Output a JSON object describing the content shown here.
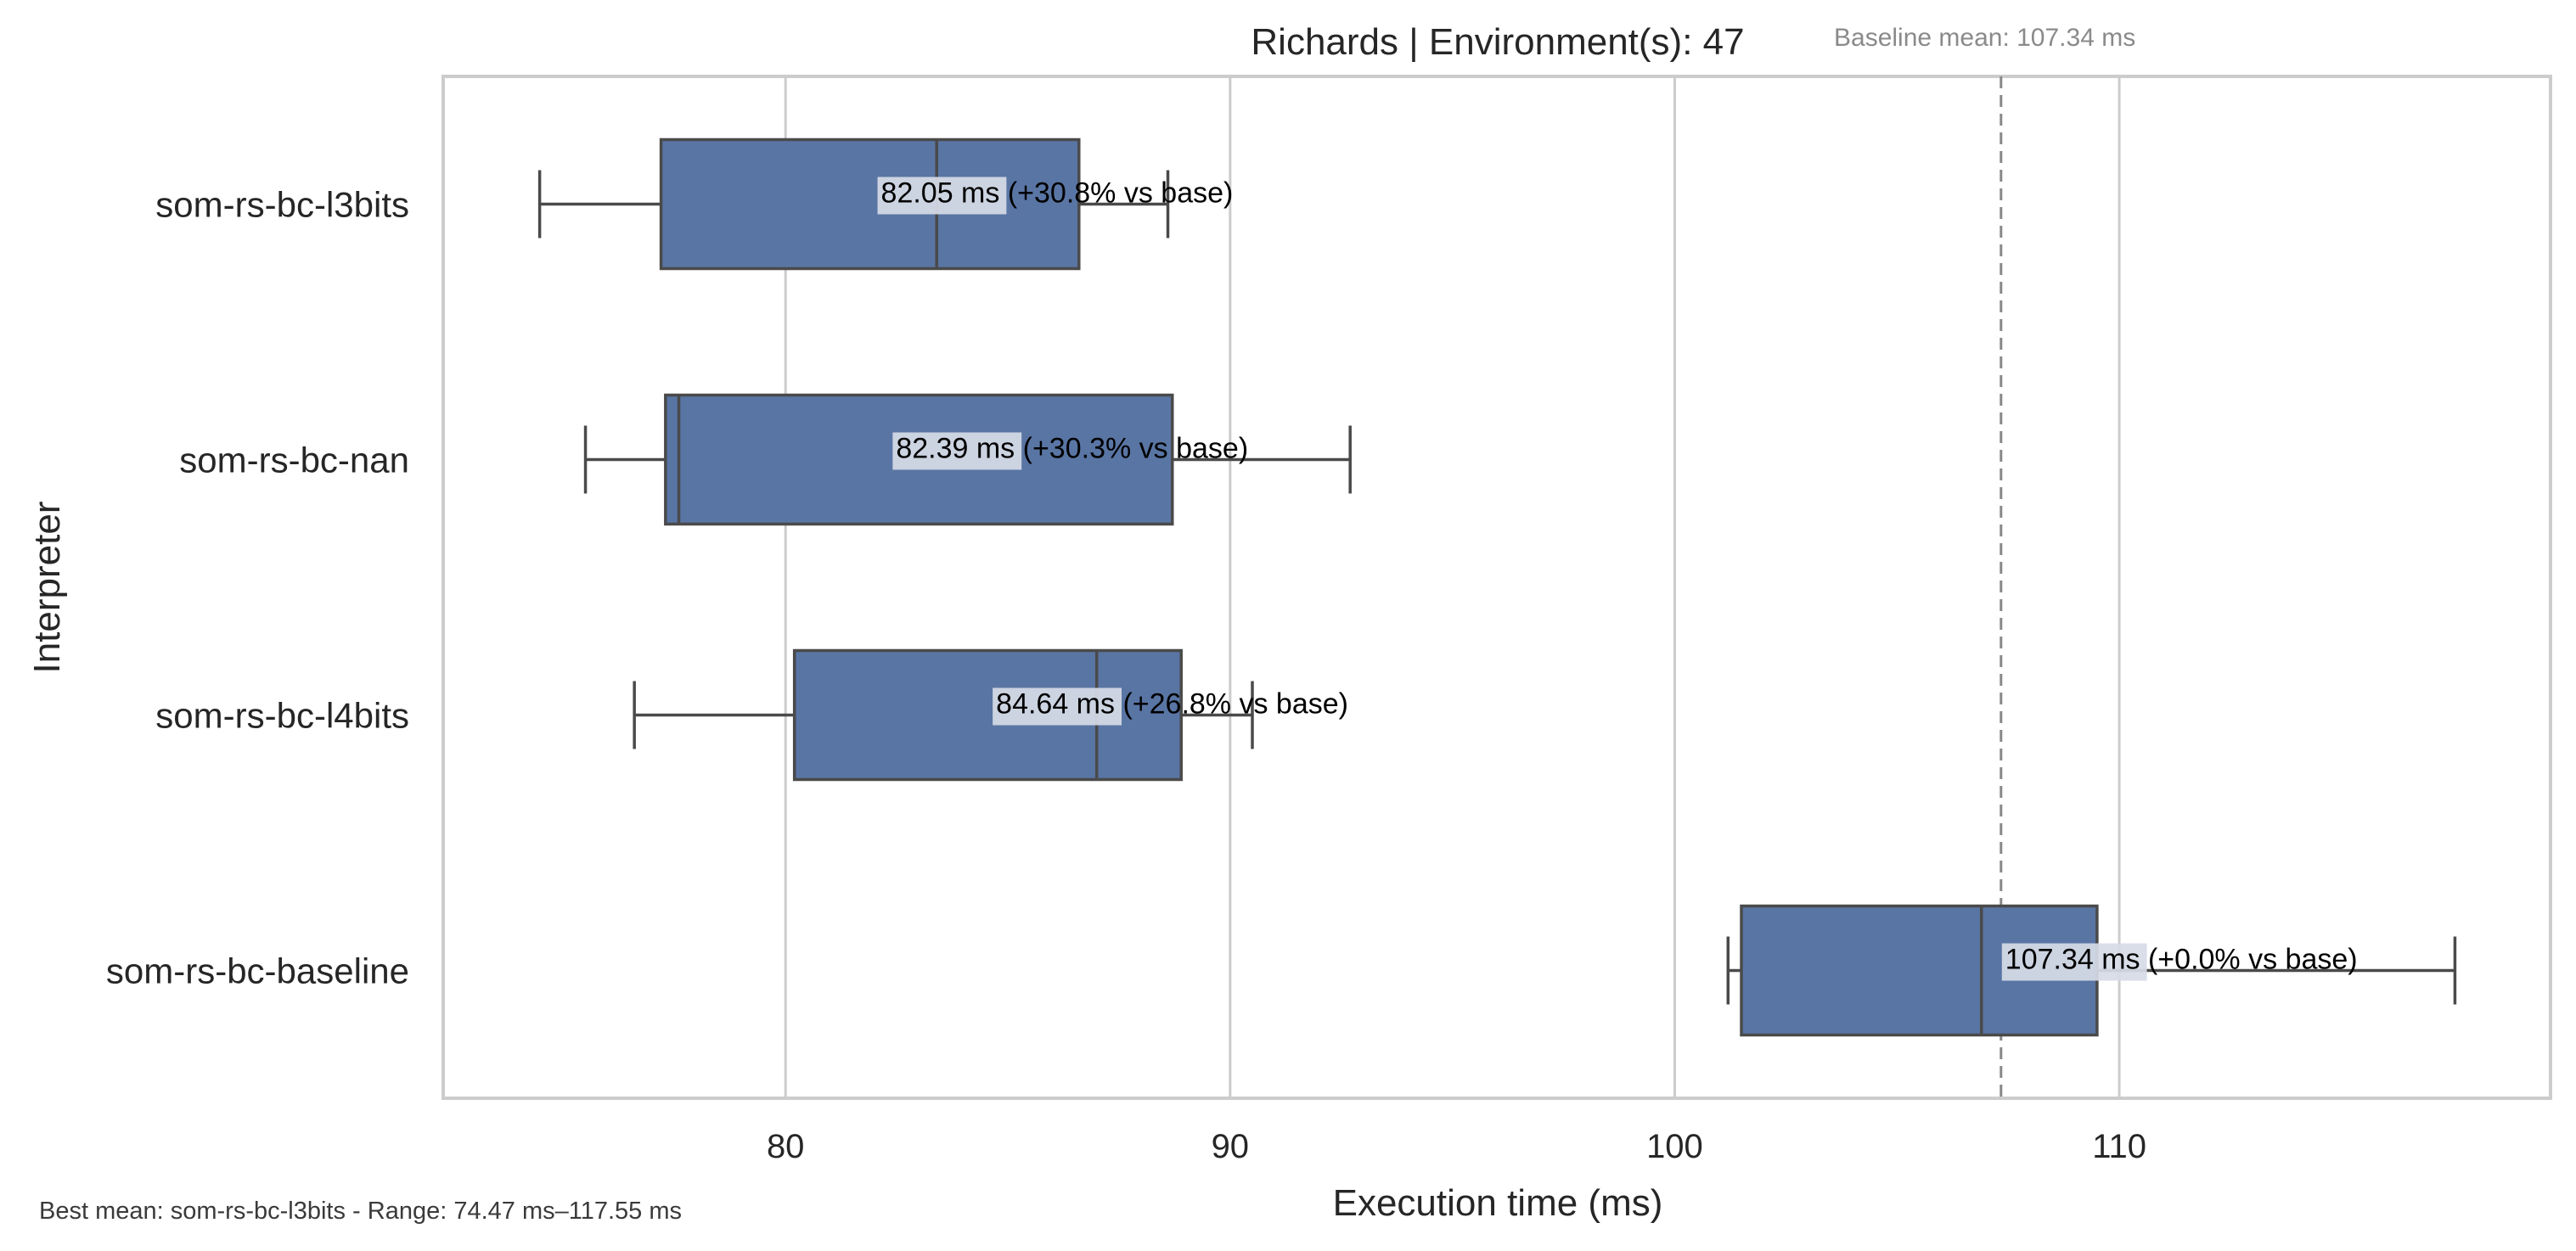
{
  "chart_data": {
    "type": "boxplot",
    "orientation": "horizontal",
    "title": "Richards | Environment(s): 47",
    "xlabel": "Execution time (ms)",
    "ylabel": "Interpreter",
    "xlim": [
      72.3,
      119.7
    ],
    "xticks": [
      80,
      90,
      100,
      110
    ],
    "grid": "vertical",
    "box_color": "#5975a4",
    "edge_color": "#4a4a4a",
    "categories": [
      "som-rs-bc-l3bits",
      "som-rs-bc-nan",
      "som-rs-bc-l4bits",
      "som-rs-bc-baseline"
    ],
    "boxes": [
      {
        "name": "som-rs-bc-l3bits",
        "whisker_low": 74.47,
        "q1": 77.2,
        "median": 83.4,
        "q3": 86.6,
        "whisker_high": 88.6,
        "label": "82.05 ms  (+30.8% vs base)"
      },
      {
        "name": "som-rs-bc-nan",
        "whisker_low": 75.5,
        "q1": 77.3,
        "median": 77.6,
        "q3": 88.7,
        "whisker_high": 92.7,
        "label": "82.39 ms  (+30.3% vs base)"
      },
      {
        "name": "som-rs-bc-l4bits",
        "whisker_low": 76.6,
        "q1": 80.2,
        "median": 87.0,
        "q3": 88.9,
        "whisker_high": 90.5,
        "label": "84.64 ms  (+26.8% vs base)"
      },
      {
        "name": "som-rs-bc-baseline",
        "whisker_low": 101.2,
        "q1": 101.5,
        "median": 106.9,
        "q3": 109.5,
        "whisker_high": 117.55,
        "label": "107.34 ms  (+0.0% vs base)"
      }
    ],
    "label_x": [
      82.05,
      82.39,
      84.64,
      107.34
    ],
    "baseline_mean": 107.34,
    "baseline_note": "Baseline mean: 107.34 ms",
    "footer_note": "Best mean: som-rs-bc-l3bits - Range: 74.47 ms–117.55 ms"
  }
}
